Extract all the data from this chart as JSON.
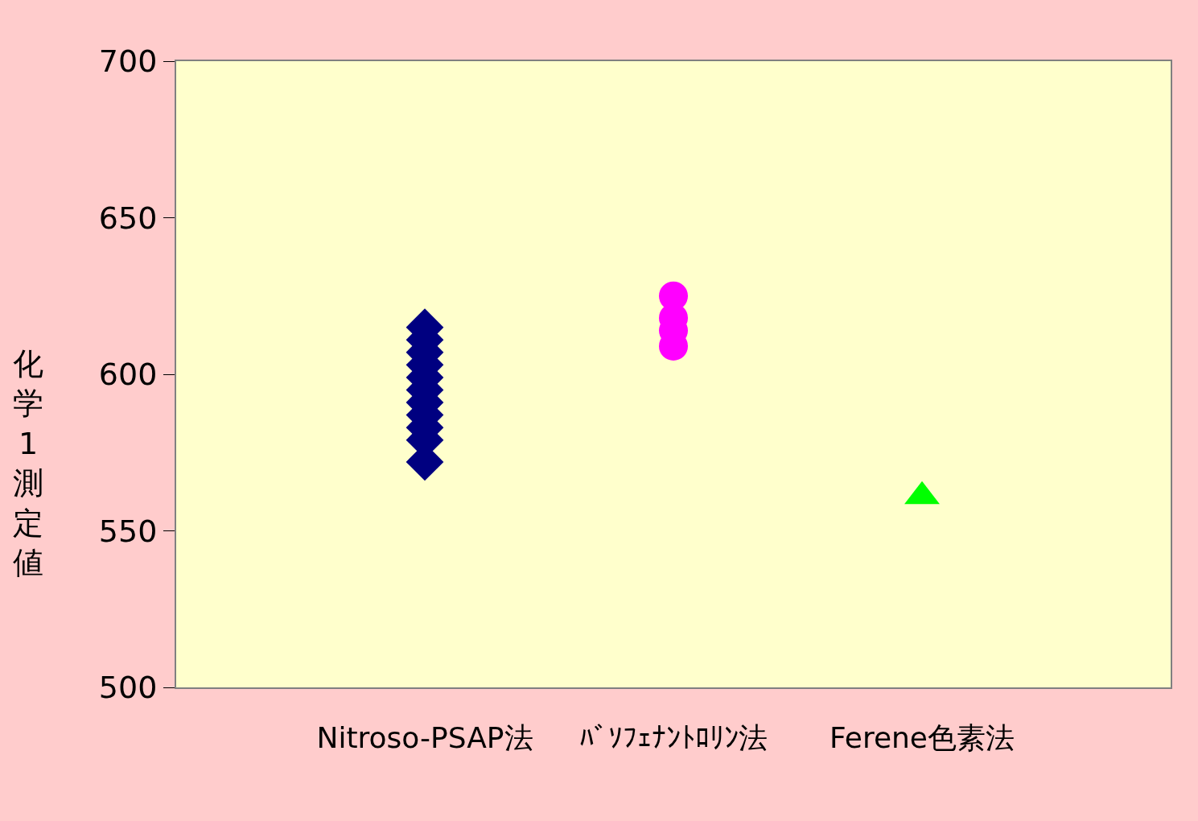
{
  "chart_data": {
    "type": "scatter",
    "ylabel": "化学1測定値",
    "categories": [
      "Nitroso-PSAP法",
      "ﾊﾞｿﾌｪﾅﾝﾄﾛﾘﾝ法",
      "Ferene色素法"
    ],
    "ylim": [
      500,
      700
    ],
    "yticks": [
      500,
      550,
      600,
      650,
      700
    ],
    "grid": false,
    "series": [
      {
        "color": "#000080",
        "marker": "diamond",
        "x": [
          "Nitroso-PSAP法",
          "Nitroso-PSAP法",
          "Nitroso-PSAP法",
          "Nitroso-PSAP法",
          "Nitroso-PSAP法",
          "Nitroso-PSAP法",
          "Nitroso-PSAP法",
          "Nitroso-PSAP法",
          "Nitroso-PSAP法",
          "Nitroso-PSAP法",
          "Nitroso-PSAP法"
        ],
        "values": [
          615,
          611,
          607,
          603,
          599,
          595,
          591,
          587,
          583,
          579,
          572
        ]
      },
      {
        "color": "#ff00ff",
        "marker": "circle",
        "x": [
          "ﾊﾞｿﾌｪﾅﾝﾄﾛﾘﾝ法",
          "ﾊﾞｿﾌｪﾅﾝﾄﾛﾘﾝ法",
          "ﾊﾞｿﾌｪﾅﾝﾄﾛﾘﾝ法",
          "ﾊﾞｿﾌｪﾅﾝﾄﾛﾘﾝ法"
        ],
        "values": [
          625,
          618,
          614,
          609
        ]
      },
      {
        "color": "#00ff00",
        "marker": "triangle",
        "x": [
          "Ferene色素法"
        ],
        "values": [
          561
        ]
      }
    ]
  }
}
